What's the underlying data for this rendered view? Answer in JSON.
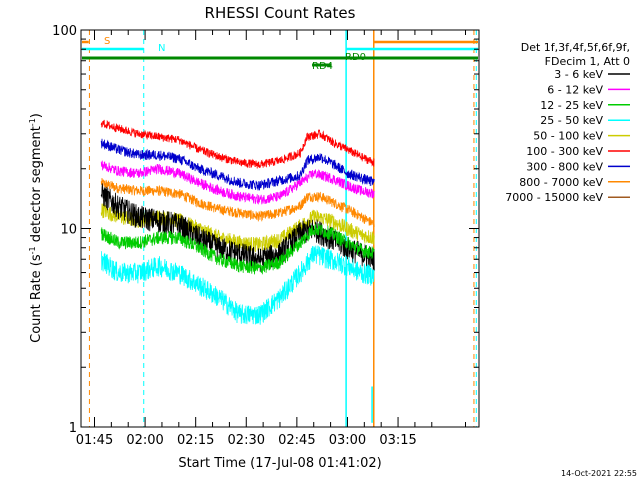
{
  "chart_data": {
    "type": "line",
    "title": "RHESSI Count Rates",
    "xlabel": "Start Time (17-Jul-08 01:41:02)",
    "ylabel_parts": [
      "Count Rate (s",
      "-1",
      " detector segment",
      "-1",
      ")"
    ],
    "yscale": "log",
    "ylim": [
      1,
      100
    ],
    "y_ticks": [
      {
        "value": 1,
        "label": "1"
      },
      {
        "value": 10,
        "label": "10"
      },
      {
        "value": 100,
        "label": "100"
      }
    ],
    "xlim_minutes": [
      101,
      219
    ],
    "x_ticks": [
      {
        "minutes": 105,
        "label": "01:45"
      },
      {
        "minutes": 120,
        "label": "02:00"
      },
      {
        "minutes": 135,
        "label": "02:15"
      },
      {
        "minutes": 150,
        "label": "02:30"
      },
      {
        "minutes": 165,
        "label": "02:45"
      },
      {
        "minutes": 180,
        "label": "03:00"
      },
      {
        "minutes": 195,
        "label": "03:15"
      }
    ],
    "legend_header": [
      "Det 1f,3f,4f,5f,6f,9f,",
      "FDecim 1, Att 0"
    ],
    "legend_position": "right",
    "series": [
      {
        "name": "3 - 6 keV",
        "color": "#000000",
        "points": [
          [
            107,
            15
          ],
          [
            112,
            13
          ],
          [
            118,
            11.5
          ],
          [
            124,
            11
          ],
          [
            130,
            10.5
          ],
          [
            136,
            9
          ],
          [
            142,
            8
          ],
          [
            148,
            7.5
          ],
          [
            154,
            7
          ],
          [
            160,
            7.5
          ],
          [
            166,
            9.5
          ],
          [
            170,
            10
          ],
          [
            175,
            9
          ],
          [
            180,
            8
          ],
          [
            184,
            7.5
          ],
          [
            188,
            7
          ]
        ]
      },
      {
        "name": "6 - 12 keV",
        "color": "#ff00ff",
        "points": [
          [
            107,
            21
          ],
          [
            112,
            19.5
          ],
          [
            118,
            19
          ],
          [
            124,
            20
          ],
          [
            130,
            19
          ],
          [
            136,
            17
          ],
          [
            142,
            15.5
          ],
          [
            148,
            14.5
          ],
          [
            154,
            14
          ],
          [
            160,
            14.5
          ],
          [
            166,
            17
          ],
          [
            170,
            19
          ],
          [
            175,
            18
          ],
          [
            180,
            16.5
          ],
          [
            184,
            15.5
          ],
          [
            188,
            15
          ]
        ]
      },
      {
        "name": "12 - 25 keV",
        "color": "#00cc00",
        "points": [
          [
            107,
            9.5
          ],
          [
            112,
            8.5
          ],
          [
            118,
            8.5
          ],
          [
            124,
            9
          ],
          [
            130,
            9
          ],
          [
            136,
            8
          ],
          [
            142,
            7
          ],
          [
            148,
            6.5
          ],
          [
            154,
            6.3
          ],
          [
            160,
            6.8
          ],
          [
            166,
            8.5
          ],
          [
            170,
            10
          ],
          [
            175,
            9.5
          ],
          [
            180,
            8.5
          ],
          [
            184,
            7.8
          ],
          [
            188,
            7.5
          ]
        ]
      },
      {
        "name": "25 - 50 keV",
        "color": "#00ffff",
        "points": [
          [
            107,
            7
          ],
          [
            112,
            6
          ],
          [
            118,
            6
          ],
          [
            124,
            6.5
          ],
          [
            130,
            6
          ],
          [
            136,
            5.2
          ],
          [
            142,
            4.5
          ],
          [
            148,
            3.7
          ],
          [
            154,
            3.7
          ],
          [
            160,
            4.5
          ],
          [
            166,
            6
          ],
          [
            170,
            7.5
          ],
          [
            175,
            7
          ],
          [
            180,
            6.5
          ],
          [
            184,
            6
          ],
          [
            188,
            5.8
          ]
        ]
      },
      {
        "name": "50 - 100 keV",
        "color": "#cccc00",
        "points": [
          [
            107,
            12.5
          ],
          [
            112,
            11.5
          ],
          [
            118,
            11
          ],
          [
            124,
            11.5
          ],
          [
            130,
            11
          ],
          [
            136,
            10
          ],
          [
            142,
            9
          ],
          [
            148,
            8.5
          ],
          [
            154,
            8.3
          ],
          [
            160,
            8.8
          ],
          [
            166,
            10.3
          ],
          [
            170,
            11.5
          ],
          [
            175,
            11
          ],
          [
            180,
            10
          ],
          [
            184,
            9.3
          ],
          [
            188,
            9
          ]
        ]
      },
      {
        "name": "100 - 300 keV",
        "color": "#ff0000",
        "points": [
          [
            107,
            34
          ],
          [
            112,
            32
          ],
          [
            118,
            30
          ],
          [
            124,
            29
          ],
          [
            130,
            28
          ],
          [
            136,
            25
          ],
          [
            142,
            23
          ],
          [
            148,
            21.5
          ],
          [
            154,
            21
          ],
          [
            160,
            22
          ],
          [
            166,
            24
          ],
          [
            168,
            29
          ],
          [
            172,
            30
          ],
          [
            176,
            27
          ],
          [
            180,
            25
          ],
          [
            184,
            23
          ],
          [
            188,
            21.5
          ]
        ]
      },
      {
        "name": "300 - 800 keV",
        "color": "#0000cc",
        "points": [
          [
            107,
            27
          ],
          [
            112,
            25
          ],
          [
            118,
            23.5
          ],
          [
            124,
            23.5
          ],
          [
            130,
            22.5
          ],
          [
            136,
            20
          ],
          [
            142,
            18.5
          ],
          [
            148,
            17
          ],
          [
            154,
            16.5
          ],
          [
            160,
            17.5
          ],
          [
            166,
            18.5
          ],
          [
            168,
            22
          ],
          [
            172,
            23
          ],
          [
            176,
            21
          ],
          [
            180,
            19
          ],
          [
            184,
            18
          ],
          [
            188,
            17
          ]
        ]
      },
      {
        "name": "800 - 7000 keV",
        "color": "#ff8800",
        "points": [
          [
            107,
            17
          ],
          [
            112,
            16
          ],
          [
            118,
            15.5
          ],
          [
            124,
            15.5
          ],
          [
            130,
            15
          ],
          [
            136,
            13.5
          ],
          [
            142,
            12.5
          ],
          [
            148,
            12
          ],
          [
            154,
            11.5
          ],
          [
            160,
            12
          ],
          [
            166,
            13
          ],
          [
            168,
            14.5
          ],
          [
            172,
            14.5
          ],
          [
            176,
            13.5
          ],
          [
            180,
            12.5
          ],
          [
            184,
            11.5
          ],
          [
            188,
            10.5
          ]
        ]
      },
      {
        "name": "7000 - 15000 keV",
        "color": "#a05a20",
        "points": []
      }
    ],
    "annotations": [
      {
        "label": "S",
        "color": "#ff8800"
      },
      {
        "label": "N",
        "color": "#00ffff"
      },
      {
        "label": "RD0",
        "color": "#008800"
      },
      {
        "label": "RD4",
        "color": "#008800"
      }
    ],
    "timestamp": "14-Oct-2021 22:55"
  }
}
